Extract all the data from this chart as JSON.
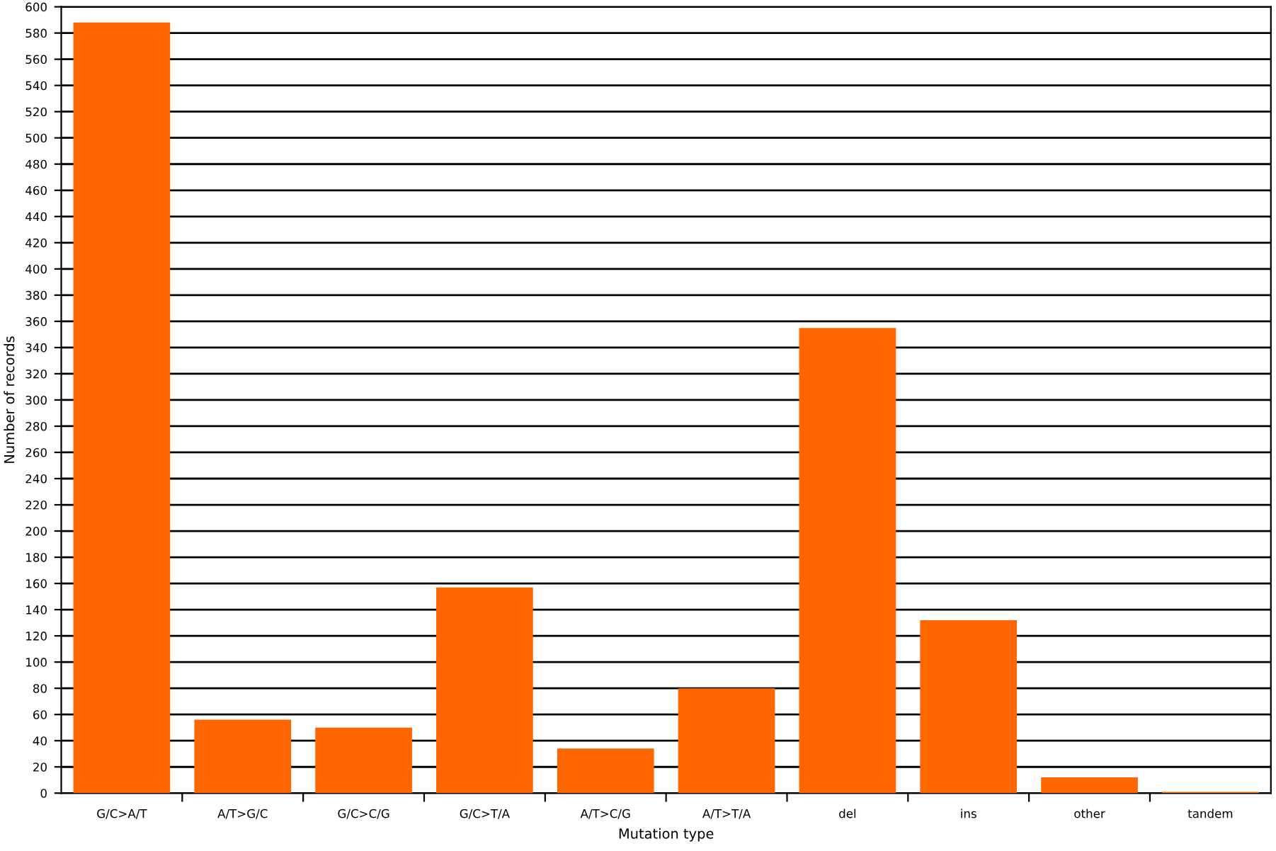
{
  "chart_data": {
    "type": "bar",
    "xlabel": "Mutation type",
    "ylabel": "Number of records",
    "categories": [
      "G/C>A/T",
      "A/T>G/C",
      "G/C>C/G",
      "G/C>T/A",
      "A/T>C/G",
      "A/T>T/A",
      "del",
      "ins",
      "other",
      "tandem"
    ],
    "values": [
      588,
      56,
      50,
      157,
      34,
      80,
      355,
      132,
      12,
      1
    ],
    "color": "#ff6600",
    "ylim": [
      0,
      600
    ],
    "yticks": [
      0,
      20,
      40,
      60,
      80,
      100,
      120,
      140,
      160,
      180,
      200,
      220,
      240,
      260,
      280,
      300,
      320,
      340,
      360,
      380,
      400,
      420,
      440,
      460,
      480,
      500,
      520,
      540,
      560,
      580,
      600
    ],
    "grid": "y",
    "legend": false
  }
}
